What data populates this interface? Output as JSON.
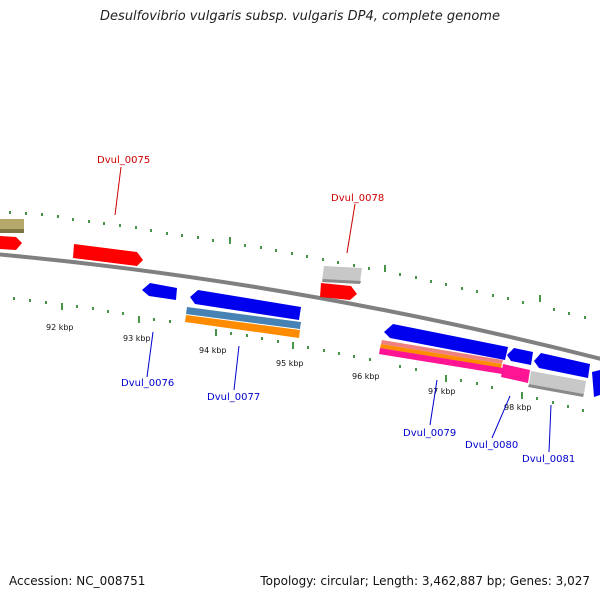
{
  "header": {
    "title": "Desulfovibrio vulgaris subsp. vulgaris DP4, complete genome"
  },
  "footer": {
    "accession": "Accession: NC_008751",
    "summary": "Topology: circular; Length: 3,462,887 bp; Genes: 3,027"
  },
  "colors": {
    "forward_gene": "#ff0000",
    "reverse_gene": "#0000ee",
    "pseudo": "#c8c8c8",
    "backbone": "#808080",
    "tick": "#1a7a1a",
    "label_forward": "#cc0000",
    "label_reverse": "#0000cc"
  },
  "scale": {
    "tick_labels": [
      "92 kbp",
      "93 kbp",
      "94 kbp",
      "95 kbp",
      "96 kbp",
      "97 kbp",
      "98 kbp"
    ]
  },
  "genes": {
    "forward_labels": [
      "Dvul_0075",
      "Dvul_0078"
    ],
    "reverse_labels": [
      "Dvul_0076",
      "Dvul_0077",
      "Dvul_0079",
      "Dvul_0080",
      "Dvul_0081"
    ]
  }
}
